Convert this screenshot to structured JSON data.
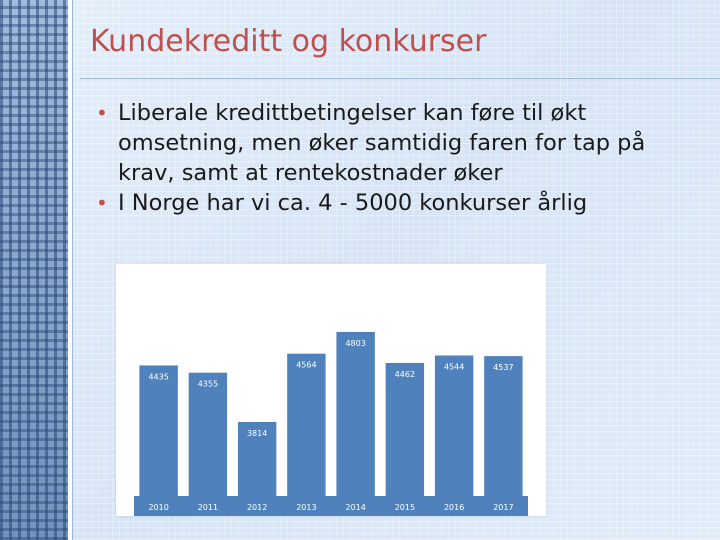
{
  "slide": {
    "title": "Kundekreditt og konkurser",
    "bullets": [
      {
        "text": "Liberale kredittbetingelser kan føre til økt omsetning, men øker samtidig faren for tap på krav, samt at rentekostnader øker"
      },
      {
        "text": "I Norge har vi ca. 4 - 5000 konkurser årlig"
      }
    ],
    "accent_color": "#c0504d",
    "bullet_icon": "bullet-dot-icon"
  },
  "chart_data": {
    "type": "bar",
    "categories": [
      "2010",
      "2011",
      "2012",
      "2013",
      "2014",
      "2015",
      "2016",
      "2017"
    ],
    "values": [
      4435,
      4355,
      3814,
      4564,
      4803,
      4462,
      4544,
      4537
    ],
    "data_labels": [
      "4435",
      "4355",
      "3814",
      "4564",
      "4803",
      "4462",
      "4544",
      "4537"
    ],
    "bar_color": "#4f81bd",
    "label_color": "#ffffff",
    "title": "",
    "xlabel": "",
    "ylabel": "",
    "ylim": [
      3000,
      5000
    ],
    "grid": false,
    "legend": "none"
  }
}
